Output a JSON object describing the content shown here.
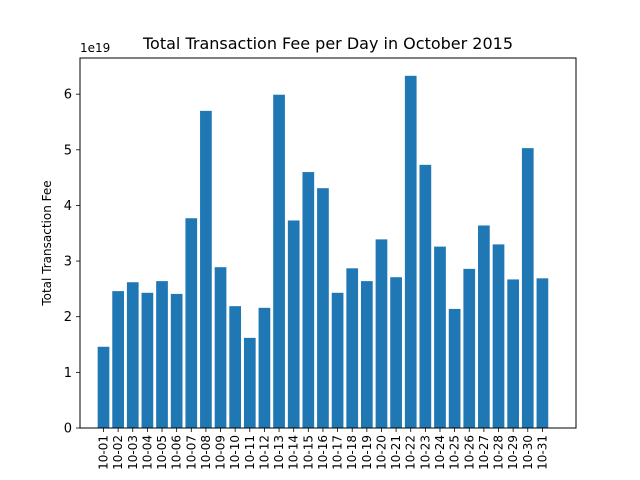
{
  "chart_data": {
    "type": "bar",
    "title": "Total Transaction Fee per Day in October 2015",
    "xlabel": "",
    "ylabel": "Total Transaction Fee",
    "scale_label": "1e19",
    "ylim": [
      0,
      6.65
    ],
    "yticks": [
      0,
      1,
      2,
      3,
      4,
      5,
      6
    ],
    "grid": false,
    "bar_color": "#1f77b4",
    "categories": [
      "10-01",
      "10-02",
      "10-03",
      "10-04",
      "10-05",
      "10-06",
      "10-07",
      "10-08",
      "10-09",
      "10-10",
      "10-11",
      "10-12",
      "10-13",
      "10-14",
      "10-15",
      "10-16",
      "10-17",
      "10-18",
      "10-19",
      "10-20",
      "10-21",
      "10-22",
      "10-23",
      "10-24",
      "10-25",
      "10-26",
      "10-27",
      "10-28",
      "10-29",
      "10-30",
      "10-31"
    ],
    "values": [
      1.46,
      2.46,
      2.62,
      2.43,
      2.64,
      2.41,
      3.77,
      5.7,
      2.89,
      2.19,
      1.62,
      2.16,
      5.99,
      3.73,
      4.6,
      4.31,
      2.43,
      2.87,
      2.64,
      3.39,
      2.71,
      6.33,
      4.73,
      3.26,
      2.14,
      2.86,
      3.64,
      3.3,
      2.67,
      5.03,
      2.69
    ]
  }
}
